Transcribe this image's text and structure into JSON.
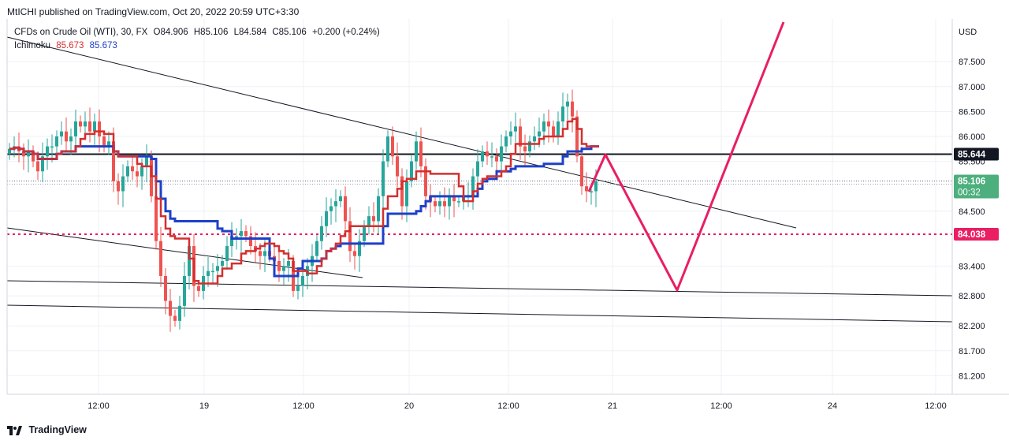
{
  "header": {
    "publisher_line": "MtICHI published on TradingView.com, Oct 20, 2022 20:59 UTC+3:30"
  },
  "legend": {
    "symbol": "CFDs on Crude Oil (WTI), 30, FX",
    "open": "O84.906",
    "high": "H85.106",
    "low": "L84.584",
    "close": "C85.106",
    "change": "+0.200 (+0.24%)",
    "indicator": "Ichimoku",
    "ichimoku_red": "85.673",
    "ichimoku_blue": "85.673"
  },
  "footer": {
    "brand": "TradingView"
  },
  "colors": {
    "candle_up": "#26a69a",
    "candle_down": "#ef5350",
    "conversion_line": "#d32f2f",
    "base_line": "#1e40c8",
    "projection": "#e91e63",
    "support_dotted": "#e91e63",
    "last_price": "#4caf7d"
  },
  "chart_data": {
    "type": "line",
    "currency_label": "USD",
    "y_ticks": [
      "87.500",
      "87.000",
      "86.500",
      "86.000",
      "85.500",
      "84.500",
      "83.400",
      "82.800",
      "82.200",
      "81.700",
      "81.200"
    ],
    "x_ticks": [
      "12:00",
      "19",
      "12:00",
      "20",
      "12:00",
      "21",
      "12:00",
      "24",
      "12:00"
    ],
    "ylim": [
      80.95,
      88.2
    ],
    "price_tags": {
      "resistance": "85.644",
      "last_price": "85.106",
      "countdown": "00:32",
      "support": "84.038"
    },
    "levels": {
      "resistance": 85.644,
      "last_price": 85.106,
      "support": 84.038
    },
    "close_series": [
      85.75,
      85.8,
      85.7,
      85.6,
      85.7,
      85.5,
      85.3,
      85.6,
      85.8,
      85.8,
      86.0,
      86.1,
      85.9,
      86.0,
      86.3,
      86.2,
      86.3,
      86.1,
      86.3,
      86.0,
      85.8,
      85.9,
      85.1,
      84.9,
      85.2,
      85.4,
      85.3,
      85.2,
      85.4,
      85.6,
      84.8,
      83.9,
      83.2,
      82.7,
      82.4,
      82.3,
      82.6,
      83.2,
      83.8,
      83.0,
      82.9,
      83.2,
      83.3,
      83.3,
      83.4,
      83.5,
      83.8,
      84.0,
      84.0,
      84.1,
      84.0,
      83.8,
      83.7,
      83.6,
      83.7,
      83.6,
      83.5,
      83.3,
      83.4,
      83.5,
      82.9,
      83.0,
      83.2,
      83.4,
      83.6,
      83.9,
      84.2,
      84.5,
      84.6,
      84.7,
      84.8,
      84.3,
      83.7,
      83.6,
      83.9,
      84.2,
      84.4,
      84.3,
      84.8,
      85.5,
      86.0,
      85.6,
      85.2,
      84.6,
      85.1,
      85.5,
      85.9,
      85.4,
      84.8,
      84.7,
      84.6,
      84.7,
      84.6,
      84.8,
      84.7,
      84.7,
      84.8,
      84.8,
      85.2,
      85.5,
      85.7,
      85.6,
      85.6,
      85.5,
      85.8,
      86.0,
      86.1,
      86.2,
      85.8,
      85.7,
      85.9,
      86.0,
      86.1,
      86.3,
      86.2,
      86.0,
      86.3,
      86.6,
      86.7,
      86.4,
      85.6,
      85.0,
      84.9,
      84.9,
      85.1
    ]
  }
}
